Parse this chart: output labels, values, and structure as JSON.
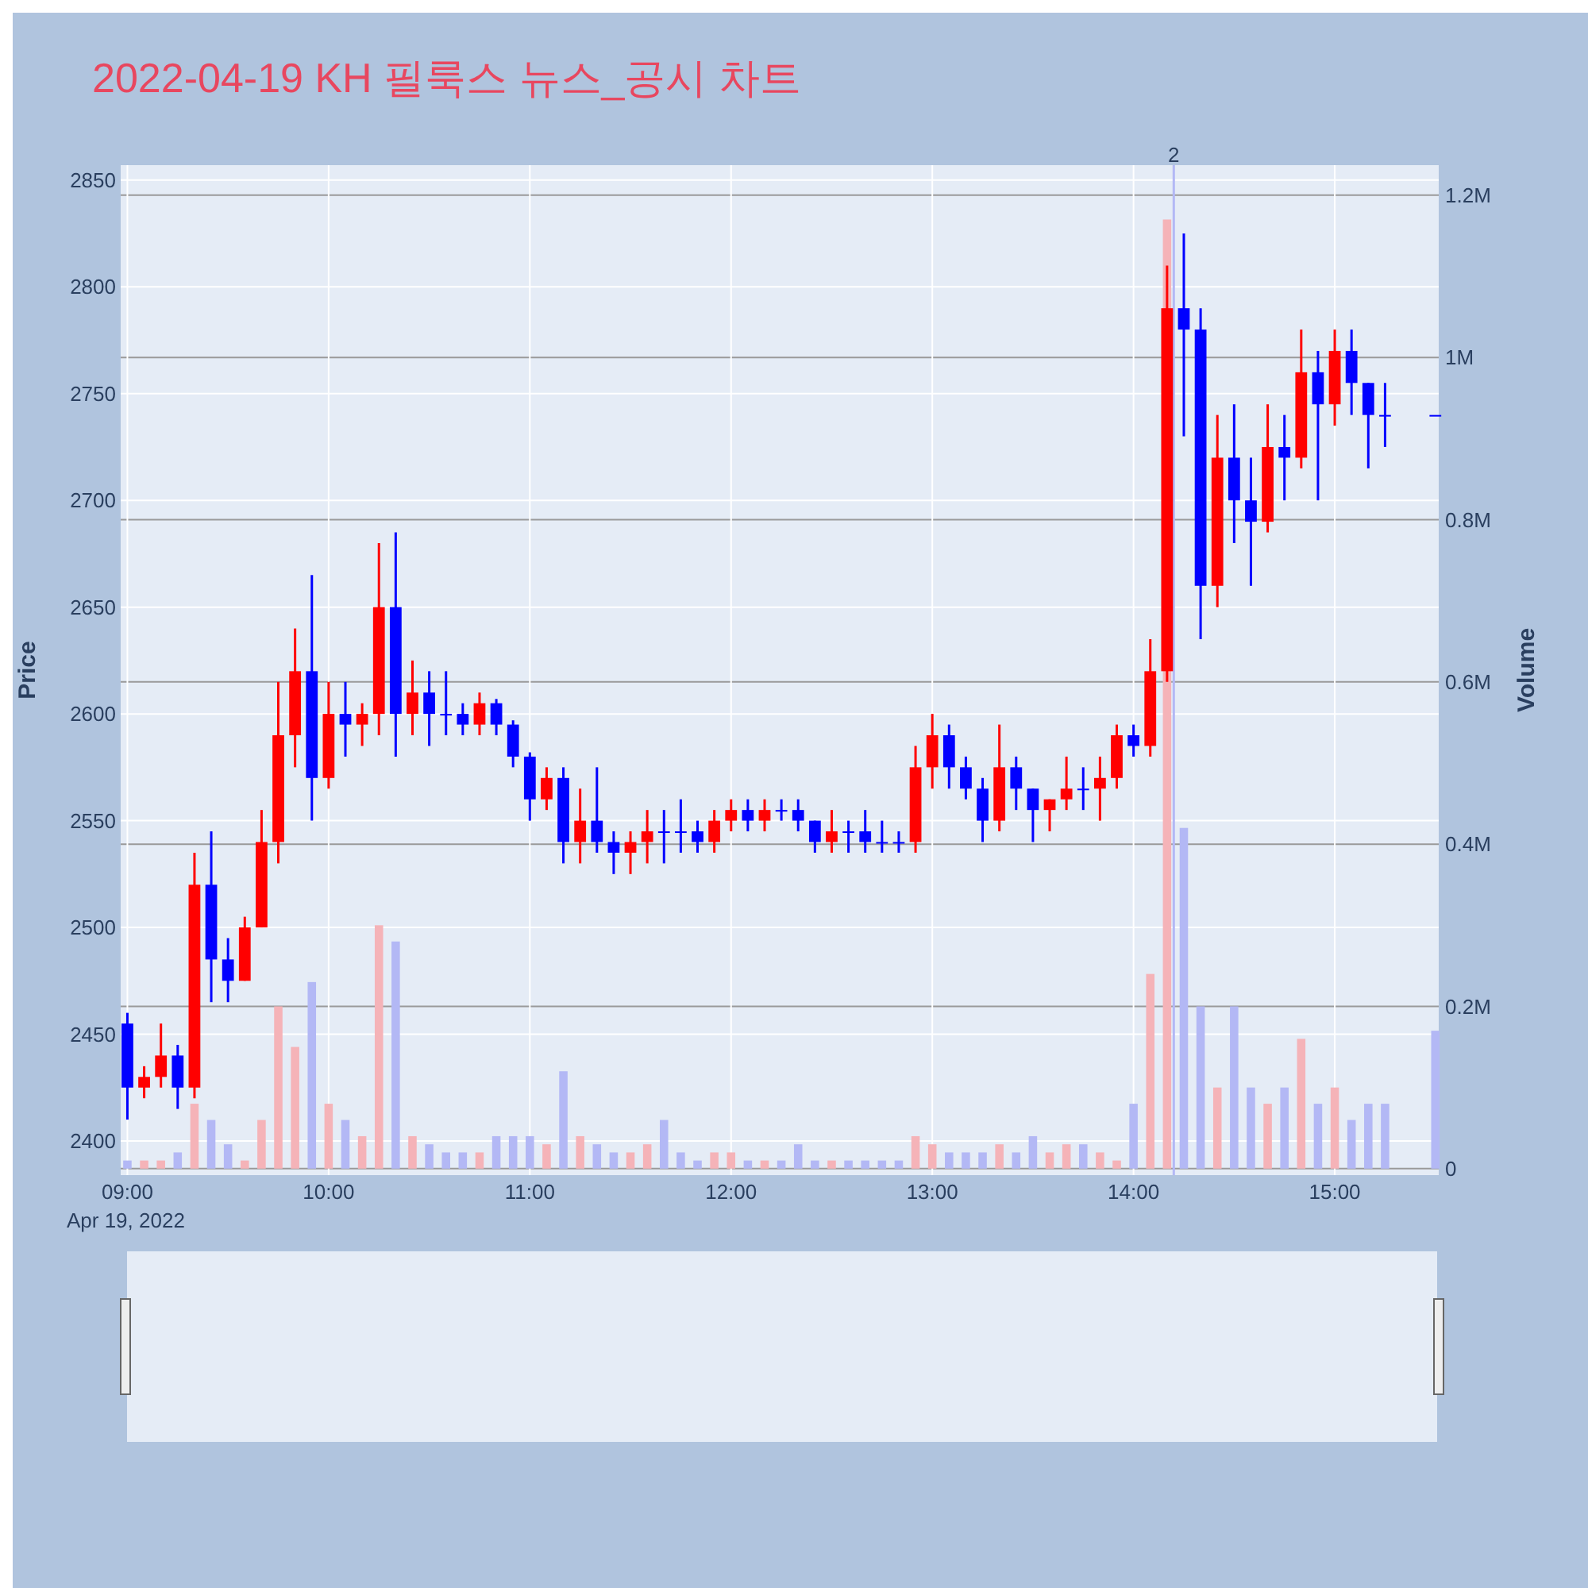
{
  "chart_data": {
    "type": "candlestick",
    "title": "2022-04-19 KH 필룩스 뉴스_공시 차트",
    "ylabel": "Price",
    "y2label": "Volume",
    "x": [
      "2022-04-19T09:00",
      "2022-04-19T09:05",
      "2022-04-19T09:10",
      "2022-04-19T09:15",
      "2022-04-19T09:20",
      "2022-04-19T09:25",
      "2022-04-19T09:30",
      "2022-04-19T09:35",
      "2022-04-19T09:40",
      "2022-04-19T09:45",
      "2022-04-19T09:50",
      "2022-04-19T09:55",
      "2022-04-19T10:00",
      "2022-04-19T10:05",
      "2022-04-19T10:10",
      "2022-04-19T10:15",
      "2022-04-19T10:20",
      "2022-04-19T10:25",
      "2022-04-19T10:30",
      "2022-04-19T10:35",
      "2022-04-19T10:40",
      "2022-04-19T10:45",
      "2022-04-19T10:50",
      "2022-04-19T10:55",
      "2022-04-19T11:00",
      "2022-04-19T11:05",
      "2022-04-19T11:10",
      "2022-04-19T11:15",
      "2022-04-19T11:20",
      "2022-04-19T11:25",
      "2022-04-19T11:30",
      "2022-04-19T11:35",
      "2022-04-19T11:40",
      "2022-04-19T11:45",
      "2022-04-19T11:50",
      "2022-04-19T11:55",
      "2022-04-19T12:00",
      "2022-04-19T12:05",
      "2022-04-19T12:10",
      "2022-04-19T12:15",
      "2022-04-19T12:20",
      "2022-04-19T12:25",
      "2022-04-19T12:30",
      "2022-04-19T12:35",
      "2022-04-19T12:40",
      "2022-04-19T12:45",
      "2022-04-19T12:50",
      "2022-04-19T12:55",
      "2022-04-19T13:00",
      "2022-04-19T13:05",
      "2022-04-19T13:10",
      "2022-04-19T13:15",
      "2022-04-19T13:20",
      "2022-04-19T13:25",
      "2022-04-19T13:30",
      "2022-04-19T13:35",
      "2022-04-19T13:40",
      "2022-04-19T13:45",
      "2022-04-19T13:50",
      "2022-04-19T13:55",
      "2022-04-19T14:00",
      "2022-04-19T14:05",
      "2022-04-19T14:10",
      "2022-04-19T14:15",
      "2022-04-19T14:20",
      "2022-04-19T14:25",
      "2022-04-19T14:30",
      "2022-04-19T14:35",
      "2022-04-19T14:40",
      "2022-04-19T14:45",
      "2022-04-19T14:50",
      "2022-04-19T14:55",
      "2022-04-19T15:00",
      "2022-04-19T15:05",
      "2022-04-19T15:10",
      "2022-04-19T15:15",
      "2022-04-19T15:30"
    ],
    "ohlc": [
      [
        2455,
        2460,
        2410,
        2425
      ],
      [
        2425,
        2435,
        2420,
        2430
      ],
      [
        2430,
        2455,
        2425,
        2440
      ],
      [
        2440,
        2445,
        2415,
        2425
      ],
      [
        2425,
        2535,
        2420,
        2520
      ],
      [
        2520,
        2545,
        2465,
        2485
      ],
      [
        2485,
        2495,
        2465,
        2475
      ],
      [
        2475,
        2505,
        2475,
        2500
      ],
      [
        2500,
        2555,
        2500,
        2540
      ],
      [
        2540,
        2615,
        2530,
        2590
      ],
      [
        2590,
        2640,
        2575,
        2620
      ],
      [
        2620,
        2665,
        2550,
        2570
      ],
      [
        2570,
        2615,
        2565,
        2600
      ],
      [
        2600,
        2615,
        2580,
        2595
      ],
      [
        2595,
        2605,
        2585,
        2600
      ],
      [
        2600,
        2680,
        2590,
        2650
      ],
      [
        2650,
        2685,
        2580,
        2600
      ],
      [
        2600,
        2625,
        2590,
        2610
      ],
      [
        2610,
        2620,
        2585,
        2600
      ],
      [
        2600,
        2620,
        2590,
        2600
      ],
      [
        2600,
        2605,
        2590,
        2595
      ],
      [
        2595,
        2610,
        2590,
        2605
      ],
      [
        2605,
        2607,
        2590,
        2595
      ],
      [
        2595,
        2597,
        2575,
        2580
      ],
      [
        2580,
        2582,
        2550,
        2560
      ],
      [
        2560,
        2575,
        2555,
        2570
      ],
      [
        2570,
        2575,
        2530,
        2540
      ],
      [
        2540,
        2565,
        2530,
        2550
      ],
      [
        2550,
        2575,
        2535,
        2540
      ],
      [
        2540,
        2545,
        2525,
        2535
      ],
      [
        2535,
        2545,
        2525,
        2540
      ],
      [
        2540,
        2555,
        2530,
        2545
      ],
      [
        2545,
        2555,
        2530,
        2545
      ],
      [
        2545,
        2560,
        2535,
        2545
      ],
      [
        2545,
        2550,
        2535,
        2540
      ],
      [
        2540,
        2555,
        2535,
        2550
      ],
      [
        2550,
        2560,
        2545,
        2555
      ],
      [
        2555,
        2560,
        2545,
        2550
      ],
      [
        2550,
        2560,
        2545,
        2555
      ],
      [
        2555,
        2560,
        2550,
        2555
      ],
      [
        2555,
        2560,
        2545,
        2550
      ],
      [
        2550,
        2550,
        2535,
        2540
      ],
      [
        2540,
        2555,
        2535,
        2545
      ],
      [
        2545,
        2550,
        2535,
        2545
      ],
      [
        2545,
        2555,
        2535,
        2540
      ],
      [
        2540,
        2550,
        2535,
        2540
      ],
      [
        2540,
        2545,
        2535,
        2540
      ],
      [
        2540,
        2585,
        2535,
        2575
      ],
      [
        2575,
        2600,
        2565,
        2590
      ],
      [
        2590,
        2595,
        2565,
        2575
      ],
      [
        2575,
        2580,
        2560,
        2565
      ],
      [
        2565,
        2570,
        2540,
        2550
      ],
      [
        2550,
        2595,
        2545,
        2575
      ],
      [
        2575,
        2580,
        2555,
        2565
      ],
      [
        2565,
        2565,
        2540,
        2555
      ],
      [
        2555,
        2560,
        2545,
        2560
      ],
      [
        2560,
        2580,
        2555,
        2565
      ],
      [
        2565,
        2575,
        2555,
        2565
      ],
      [
        2565,
        2580,
        2550,
        2570
      ],
      [
        2570,
        2595,
        2565,
        2590
      ],
      [
        2590,
        2595,
        2580,
        2585
      ],
      [
        2585,
        2635,
        2580,
        2620
      ],
      [
        2620,
        2810,
        2615,
        2790
      ],
      [
        2790,
        2825,
        2730,
        2780
      ],
      [
        2780,
        2790,
        2635,
        2660
      ],
      [
        2660,
        2740,
        2650,
        2720
      ],
      [
        2720,
        2745,
        2680,
        2700
      ],
      [
        2700,
        2720,
        2660,
        2690
      ],
      [
        2690,
        2745,
        2685,
        2725
      ],
      [
        2725,
        2740,
        2700,
        2720
      ],
      [
        2720,
        2780,
        2715,
        2760
      ],
      [
        2760,
        2770,
        2700,
        2745
      ],
      [
        2745,
        2780,
        2735,
        2770
      ],
      [
        2770,
        2780,
        2740,
        2755
      ],
      [
        2755,
        2755,
        2715,
        2740
      ],
      [
        2740,
        2755,
        2725,
        2740
      ],
      [
        2740,
        2740,
        2740,
        2740
      ]
    ],
    "colors": [
      "#0000ff",
      "#ff0000",
      "#ff0000",
      "#0000ff",
      "#ff0000",
      "#0000ff",
      "#0000ff",
      "#ff0000",
      "#ff0000",
      "#ff0000",
      "#ff0000",
      "#0000ff",
      "#ff0000",
      "#0000ff",
      "#ff0000",
      "#ff0000",
      "#0000ff",
      "#ff0000",
      "#0000ff",
      "#0000ff",
      "#0000ff",
      "#ff0000",
      "#0000ff",
      "#0000ff",
      "#0000ff",
      "#ff0000",
      "#0000ff",
      "#ff0000",
      "#0000ff",
      "#0000ff",
      "#ff0000",
      "#ff0000",
      "#0000ff",
      "#0000ff",
      "#0000ff",
      "#ff0000",
      "#ff0000",
      "#0000ff",
      "#ff0000",
      "#0000ff",
      "#0000ff",
      "#0000ff",
      "#ff0000",
      "#0000ff",
      "#0000ff",
      "#0000ff",
      "#0000ff",
      "#ff0000",
      "#ff0000",
      "#0000ff",
      "#0000ff",
      "#0000ff",
      "#ff0000",
      "#0000ff",
      "#0000ff",
      "#ff0000",
      "#ff0000",
      "#0000ff",
      "#ff0000",
      "#ff0000",
      "#0000ff",
      "#ff0000",
      "#ff0000",
      "#0000ff",
      "#0000ff",
      "#ff0000",
      "#0000ff",
      "#0000ff",
      "#ff0000",
      "#0000ff",
      "#ff0000",
      "#0000ff",
      "#ff0000",
      "#0000ff",
      "#0000ff",
      "#0000ff",
      "#0000ff"
    ],
    "series": [
      {
        "type": "bar",
        "axis": "y2",
        "values": [
          10000,
          10000,
          10000,
          20000,
          80000,
          60000,
          30000,
          10000,
          60000,
          200000,
          150000,
          230000,
          80000,
          60000,
          40000,
          300000,
          280000,
          40000,
          30000,
          20000,
          20000,
          20000,
          40000,
          40000,
          40000,
          30000,
          120000,
          40000,
          30000,
          20000,
          20000,
          30000,
          60000,
          20000,
          10000,
          20000,
          20000,
          10000,
          10000,
          10000,
          30000,
          10000,
          10000,
          10000,
          10000,
          10000,
          10000,
          40000,
          30000,
          20000,
          20000,
          20000,
          30000,
          20000,
          40000,
          20000,
          30000,
          30000,
          20000,
          10000,
          80000,
          240000,
          1170000,
          420000,
          200000,
          100000,
          200000,
          100000,
          80000,
          100000,
          160000,
          80000,
          100000,
          60000,
          80000,
          80000,
          170000
        ],
        "colors": [
          "#b3b8f5",
          "#f5b3b8",
          "#f5b3b8",
          "#b3b8f5",
          "#f5b3b8",
          "#b3b8f5",
          "#b3b8f5",
          "#f5b3b8",
          "#f5b3b8",
          "#f5b3b8",
          "#f5b3b8",
          "#b3b8f5",
          "#f5b3b8",
          "#b3b8f5",
          "#f5b3b8",
          "#f5b3b8",
          "#b3b8f5",
          "#f5b3b8",
          "#b3b8f5",
          "#b3b8f5",
          "#b3b8f5",
          "#f5b3b8",
          "#b3b8f5",
          "#b3b8f5",
          "#b3b8f5",
          "#f5b3b8",
          "#b3b8f5",
          "#f5b3b8",
          "#b3b8f5",
          "#b3b8f5",
          "#f5b3b8",
          "#f5b3b8",
          "#b3b8f5",
          "#b3b8f5",
          "#b3b8f5",
          "#f5b3b8",
          "#f5b3b8",
          "#b3b8f5",
          "#f5b3b8",
          "#b3b8f5",
          "#b3b8f5",
          "#b3b8f5",
          "#f5b3b8",
          "#b3b8f5",
          "#b3b8f5",
          "#b3b8f5",
          "#b3b8f5",
          "#f5b3b8",
          "#f5b3b8",
          "#b3b8f5",
          "#b3b8f5",
          "#b3b8f5",
          "#f5b3b8",
          "#b3b8f5",
          "#b3b8f5",
          "#f5b3b8",
          "#f5b3b8",
          "#b3b8f5",
          "#f5b3b8",
          "#f5b3b8",
          "#b3b8f5",
          "#f5b3b8",
          "#f5b3b8",
          "#b3b8f5",
          "#b3b8f5",
          "#f5b3b8",
          "#b3b8f5",
          "#b3b8f5",
          "#f5b3b8",
          "#b3b8f5",
          "#f5b3b8",
          "#b3b8f5",
          "#f5b3b8",
          "#b3b8f5",
          "#b3b8f5",
          "#b3b8f5",
          "#b3b8f5"
        ]
      }
    ],
    "xlim": [
      "2022-04-19T08:58",
      "2022-04-19T15:31"
    ],
    "xticks": [
      {
        "value": "2022-04-19T09:00",
        "label": "09:00\nApr 19, 2022"
      },
      {
        "value": "2022-04-19T10:00",
        "label": "10:00"
      },
      {
        "value": "2022-04-19T11:00",
        "label": "11:00"
      },
      {
        "value": "2022-04-19T12:00",
        "label": "12:00"
      },
      {
        "value": "2022-04-19T13:00",
        "label": "13:00"
      },
      {
        "value": "2022-04-19T14:00",
        "label": "14:00"
      },
      {
        "value": "2022-04-19T15:00",
        "label": "15:00"
      }
    ],
    "ylim": [
      2384,
      2857
    ],
    "yticks": [
      2400,
      2450,
      2500,
      2550,
      2600,
      2650,
      2700,
      2750,
      2800,
      2850
    ],
    "y2lim": [
      -8000,
      1237000
    ],
    "y2ticks": [
      0,
      {
        "value": 200000,
        "label": "0.2M"
      },
      {
        "value": 400000,
        "label": "0.4M"
      },
      {
        "value": 600000,
        "label": "0.6M"
      },
      {
        "value": 800000,
        "label": "0.8M"
      },
      {
        "value": 1000000,
        "label": "1M"
      },
      {
        "value": 1200000,
        "label": "1.2M"
      }
    ],
    "grid": true,
    "ref_lines": [
      {
        "axis": "x",
        "value": "2022-04-19T14:12",
        "label": "2",
        "color": "#b3b8f5"
      }
    ]
  }
}
